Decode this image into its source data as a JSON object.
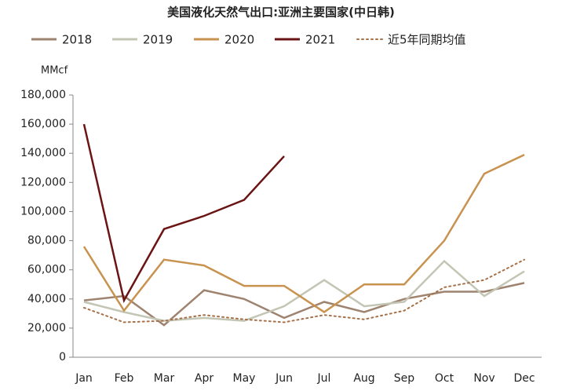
{
  "chart_data": {
    "type": "line",
    "title": "美国液化天然气出口:亚洲主要国家(中日韩)",
    "y_axis_label": "MMcf",
    "categories": [
      "Jan",
      "Feb",
      "Mar",
      "Apr",
      "May",
      "Jun",
      "Jul",
      "Aug",
      "Sep",
      "Oct",
      "Nov",
      "Dec"
    ],
    "series": [
      {
        "name": "2018",
        "color": "#9e8470",
        "values": [
          39000,
          42000,
          22000,
          46000,
          40000,
          27000,
          38000,
          31000,
          40000,
          45000,
          45000,
          51000
        ]
      },
      {
        "name": "2019",
        "color": "#c3c6b4",
        "values": [
          38000,
          31000,
          25000,
          27000,
          25000,
          35000,
          53000,
          35000,
          38000,
          66000,
          42000,
          59000
        ]
      },
      {
        "name": "2020",
        "color": "#c8924f",
        "values": [
          76000,
          32000,
          67000,
          63000,
          49000,
          49000,
          31000,
          50000,
          50000,
          80000,
          126000,
          139000
        ]
      },
      {
        "name": "2021",
        "color": "#6b1414",
        "values": [
          160000,
          39000,
          88000,
          97000,
          108000,
          138000,
          null,
          null,
          null,
          null,
          null,
          null
        ]
      },
      {
        "name": "近5年同期均值",
        "color": "#a6714a",
        "dashed": true,
        "values": [
          34000,
          24000,
          25000,
          29000,
          26000,
          24000,
          29000,
          26000,
          32000,
          48000,
          53000,
          67000
        ]
      }
    ],
    "ylim": [
      0,
      180000
    ],
    "yticks": [
      0,
      {
        "value": 20000,
        "label": "20,000"
      },
      {
        "value": 40000,
        "label": "40,000"
      },
      {
        "value": 60000,
        "label": "60,000"
      },
      {
        "value": 80000,
        "label": "80,000"
      },
      {
        "value": 100000,
        "label": "100,000"
      },
      {
        "value": 120000,
        "label": "120,000"
      },
      {
        "value": 140000,
        "label": "140,000"
      },
      {
        "value": 160000,
        "label": "160,000"
      },
      {
        "value": 180000,
        "label": "180,000"
      }
    ],
    "grid": false,
    "legend": "top"
  }
}
